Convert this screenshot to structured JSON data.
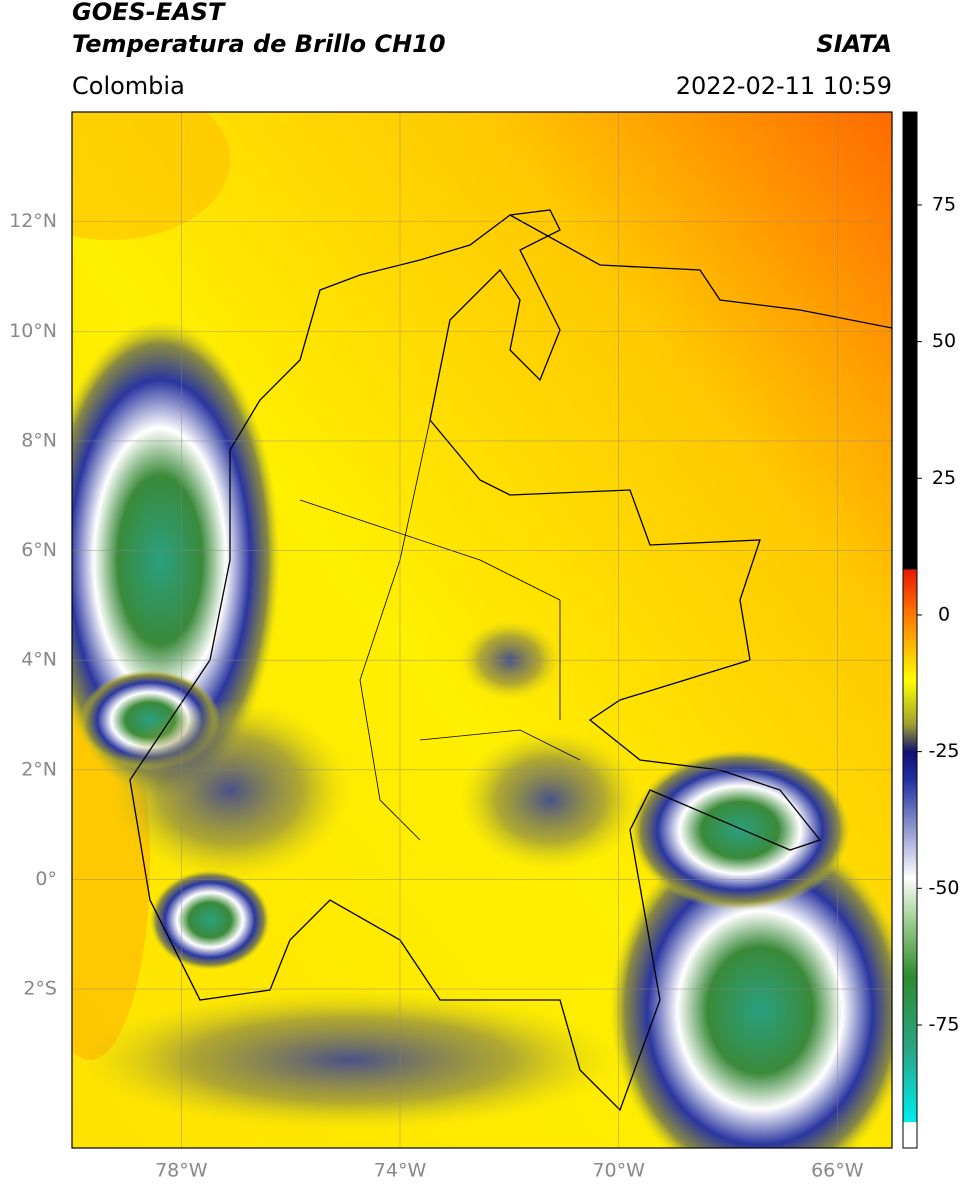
{
  "header": {
    "satellite": "GOES-EAST",
    "product": "Temperatura de Brillo CH10",
    "agency": "SIATA",
    "region": "Colombia",
    "datetime": "2022-02-11 10:59"
  },
  "map": {
    "lonlim": [
      -80,
      -65
    ],
    "latlim": [
      -4.9,
      14
    ],
    "lon_ticks": [
      {
        "value": -78,
        "label": "78°W"
      },
      {
        "value": -74,
        "label": "74°W"
      },
      {
        "value": -70,
        "label": "70°W"
      },
      {
        "value": -66,
        "label": "66°W"
      }
    ],
    "lat_ticks": [
      {
        "value": 12,
        "label": "12°N"
      },
      {
        "value": 10,
        "label": "10°N"
      },
      {
        "value": 8,
        "label": "8°N"
      },
      {
        "value": 6,
        "label": "6°N"
      },
      {
        "value": 4,
        "label": "4°N"
      },
      {
        "value": 2,
        "label": "2°N"
      },
      {
        "value": 0,
        "label": "0°"
      },
      {
        "value": -2,
        "label": "2°S"
      }
    ],
    "grid": true
  },
  "colorbar": {
    "lim": [
      -97.5,
      92
    ],
    "ticks": [
      75,
      50,
      25,
      0,
      -25,
      -50,
      -75
    ],
    "colormap": [
      {
        "value": 92,
        "color": "#000000"
      },
      {
        "value": 8.4,
        "color": "#000000"
      },
      {
        "value": 8.3,
        "color": "#e81800"
      },
      {
        "value": 0,
        "color": "#ff7a00"
      },
      {
        "value": -12,
        "color": "#ffff00"
      },
      {
        "value": -20,
        "color": "#a0a030"
      },
      {
        "value": -25,
        "color": "#101070"
      },
      {
        "value": -30,
        "color": "#2030a0"
      },
      {
        "value": -48,
        "color": "#ffffff"
      },
      {
        "value": -56,
        "color": "#9ccf90"
      },
      {
        "value": -66,
        "color": "#2f8a2f"
      },
      {
        "value": -80,
        "color": "#2aa88a"
      },
      {
        "value": -91.5,
        "color": "#00e8e8"
      },
      {
        "value": -92.7,
        "color": "#00e8e8"
      },
      {
        "value": -92.8,
        "color": "#ffffff"
      },
      {
        "value": -97.5,
        "color": "#ffffff"
      }
    ]
  }
}
